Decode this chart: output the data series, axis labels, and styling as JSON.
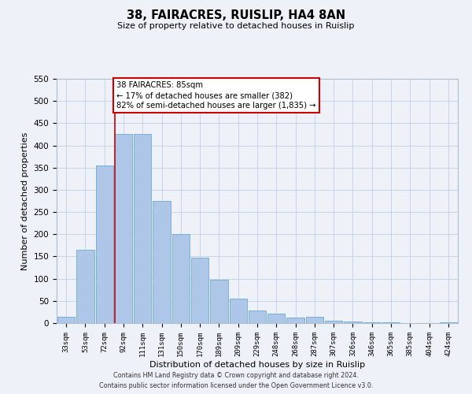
{
  "title": "38, FAIRACRES, RUISLIP, HA4 8AN",
  "subtitle": "Size of property relative to detached houses in Ruislip",
  "xlabel": "Distribution of detached houses by size in Ruislip",
  "ylabel": "Number of detached properties",
  "categories": [
    "33sqm",
    "53sqm",
    "72sqm",
    "92sqm",
    "111sqm",
    "131sqm",
    "150sqm",
    "170sqm",
    "189sqm",
    "209sqm",
    "229sqm",
    "248sqm",
    "268sqm",
    "287sqm",
    "307sqm",
    "326sqm",
    "346sqm",
    "365sqm",
    "385sqm",
    "404sqm",
    "424sqm"
  ],
  "values": [
    15,
    165,
    355,
    425,
    425,
    275,
    200,
    148,
    97,
    55,
    28,
    22,
    13,
    15,
    5,
    3,
    1,
    1,
    0,
    0,
    2
  ],
  "bar_color": "#aec6e8",
  "bar_edge_color": "#6aaad4",
  "property_line_color": "#cc0000",
  "annotation_line1": "38 FAIRACRES: 85sqm",
  "annotation_line2": "← 17% of detached houses are smaller (382)",
  "annotation_line3": "82% of semi-detached houses are larger (1,835) →",
  "annotation_box_color": "#ffffff",
  "annotation_box_edge_color": "#cc0000",
  "ylim": [
    0,
    550
  ],
  "yticks": [
    0,
    50,
    100,
    150,
    200,
    250,
    300,
    350,
    400,
    450,
    500,
    550
  ],
  "footer_line1": "Contains HM Land Registry data © Crown copyright and database right 2024.",
  "footer_line2": "Contains public sector information licensed under the Open Government Licence v3.0.",
  "bg_color": "#eef2f8",
  "plot_bg_color": "#eef2f8",
  "grid_color": "#c8d4e8"
}
